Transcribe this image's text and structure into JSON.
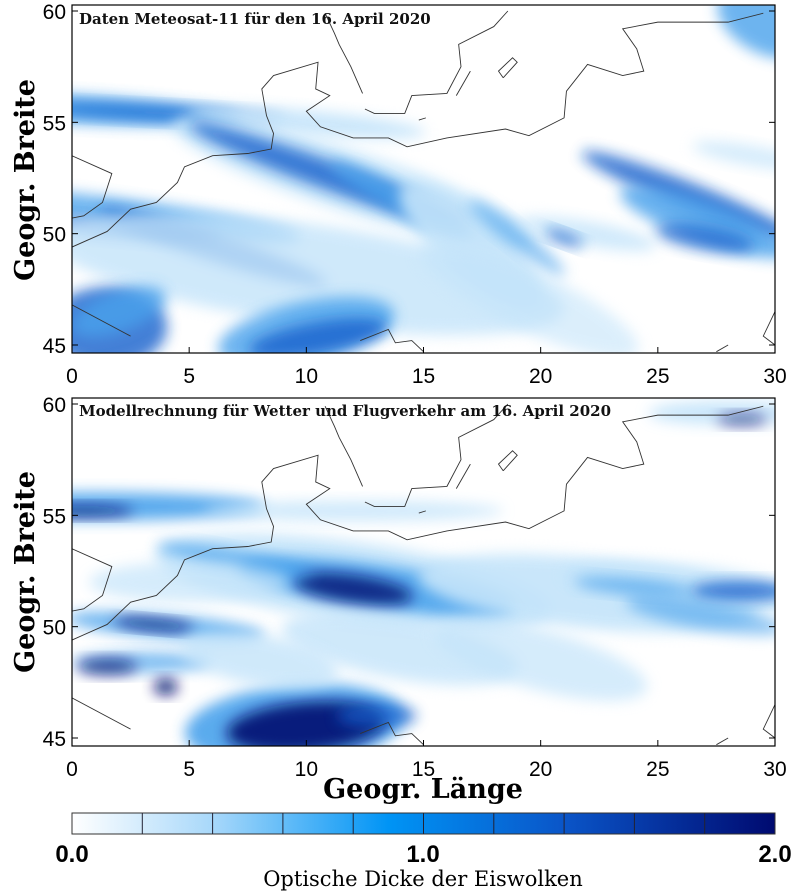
{
  "panels": [
    {
      "title": "Daten Meteosat-11 für den 16. April 2020",
      "ylabel": "Geogr. Breite"
    },
    {
      "title": "Modellrechnung für Wetter und Flugverkehr am 16. April 2020",
      "ylabel": "Geogr. Breite"
    }
  ],
  "x_ticks": [
    "0",
    "5",
    "10",
    "15",
    "20",
    "25",
    "30"
  ],
  "y_ticks": [
    "45",
    "50",
    "55",
    "60"
  ],
  "xlabel": "Geogr. Länge",
  "lon_range": [
    0,
    30
  ],
  "lat_range": [
    45,
    60
  ],
  "colorbar": {
    "label": "Optische Dicke der Eiswolken",
    "ticks": [
      "0.0",
      "1.0",
      "2.0"
    ],
    "range": [
      0,
      2
    ],
    "segments": 10,
    "colors": [
      "#ffffff",
      "#b0dcf8",
      "#0090f0",
      "#0a50c8",
      "#000a70"
    ]
  }
}
